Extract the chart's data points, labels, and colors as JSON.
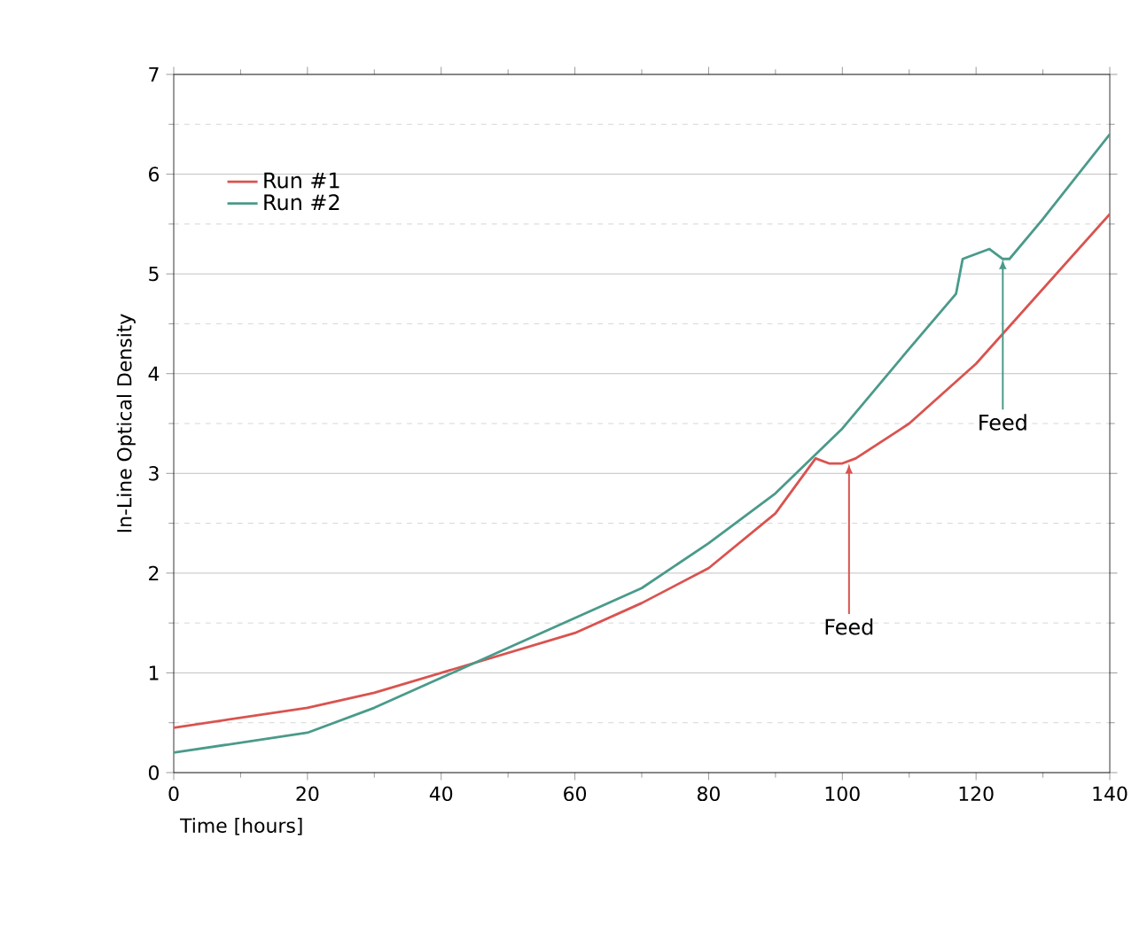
{
  "chart_data": {
    "type": "line",
    "xlabel": "Time [hours]",
    "ylabel": "In-Line Optical Density",
    "xlim": [
      0,
      140
    ],
    "ylim": [
      0,
      7
    ],
    "xticks": [
      0,
      20,
      40,
      60,
      80,
      100,
      120,
      140
    ],
    "yticks": [
      0,
      1,
      2,
      3,
      4,
      5,
      6,
      7
    ],
    "grid": true,
    "legend": "top left",
    "line_style": "solid",
    "marker": "none",
    "series": [
      {
        "name": "Run #1",
        "color": "#d9534f",
        "x": [
          0,
          10,
          20,
          30,
          40,
          50,
          60,
          70,
          80,
          90,
          96,
          98,
          100,
          102,
          110,
          120,
          130,
          140
        ],
        "values": [
          0.45,
          0.55,
          0.65,
          0.8,
          1.0,
          1.2,
          1.4,
          1.7,
          2.05,
          2.6,
          3.15,
          3.1,
          3.1,
          3.15,
          3.5,
          4.1,
          4.85,
          5.6
        ]
      },
      {
        "name": "Run #2",
        "color": "#4a9a8a",
        "x": [
          0,
          10,
          20,
          30,
          40,
          50,
          60,
          70,
          80,
          90,
          100,
          110,
          117,
          118,
          120,
          122,
          124,
          125,
          130,
          140
        ],
        "values": [
          0.2,
          0.3,
          0.4,
          0.65,
          0.95,
          1.25,
          1.55,
          1.85,
          2.3,
          2.8,
          3.45,
          4.25,
          4.8,
          5.15,
          5.2,
          5.25,
          5.15,
          5.15,
          5.55,
          6.4
        ]
      }
    ],
    "annotations": [
      {
        "text": "Feed",
        "x": 101,
        "y": 3.1
      },
      {
        "text": "Feed",
        "x": 124,
        "y": 5.15
      }
    ]
  }
}
